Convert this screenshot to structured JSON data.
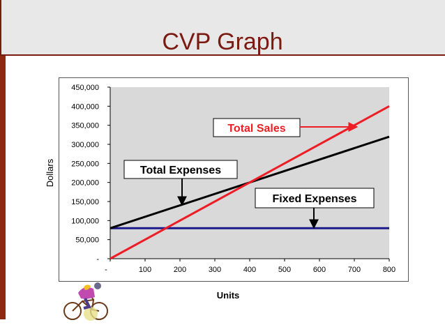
{
  "slide": {
    "title": "CVP Graph"
  },
  "chart_data": {
    "type": "line",
    "xlabel": "Units",
    "ylabel": "Dollars",
    "xlim": [
      0,
      800
    ],
    "ylim": [
      0,
      450000
    ],
    "x_ticks": [
      "-",
      "100",
      "200",
      "300",
      "400",
      "500",
      "600",
      "700",
      "800"
    ],
    "y_ticks": [
      "-",
      "50,000",
      "100,000",
      "150,000",
      "200,000",
      "250,000",
      "300,000",
      "350,000",
      "400,000",
      "450,000"
    ],
    "grid": false,
    "series": [
      {
        "name": "Total Sales",
        "color": "#ee1c24",
        "x": [
          0,
          800
        ],
        "y": [
          0,
          400000
        ]
      },
      {
        "name": "Total Expenses",
        "color": "#000000",
        "x": [
          0,
          800
        ],
        "y": [
          80000,
          320000
        ]
      },
      {
        "name": "Fixed Expenses",
        "color": "#1a1a8c",
        "x": [
          0,
          800
        ],
        "y": [
          80000,
          80000
        ]
      }
    ],
    "annotations": [
      {
        "text": "Total Sales",
        "color": "#ee1c24"
      },
      {
        "text": "Total Expenses",
        "color": "#000000"
      },
      {
        "text": "Fixed Expenses",
        "color": "#000000"
      }
    ]
  }
}
